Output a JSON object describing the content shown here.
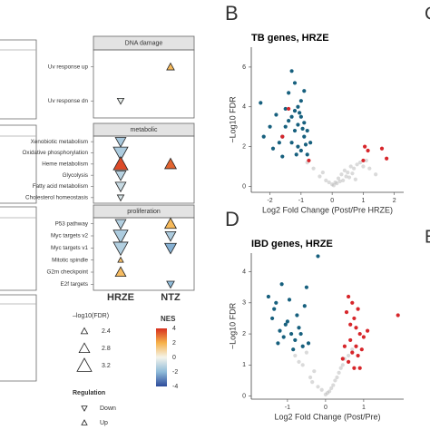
{
  "chart_data": [
    {
      "type": "triangle",
      "x_categories": [
        "HRZE",
        "NTZ"
      ],
      "panels": [
        {
          "title": "DNA damage",
          "rows": [
            {
              "label": "Uv response up",
              "NTZ": {
                "nes": 1.8,
                "fdr": 2.5,
                "regulation": "Up"
              }
            },
            {
              "label": "Uv response dn",
              "HRZE": {
                "nes": -0.3,
                "fdr": 2.4,
                "regulation": "Down"
              }
            }
          ]
        },
        {
          "title": "metabolic",
          "rows": [
            {
              "label": "Xenobiotic metabolism",
              "HRZE": {
                "nes": -1.5,
                "fdr": 2.8,
                "regulation": "Down"
              }
            },
            {
              "label": "Oxidative phosphorylation",
              "HRZE": {
                "nes": -1.4,
                "fdr": 3.2,
                "regulation": "Down"
              }
            },
            {
              "label": "Heme metabolism",
              "HRZE": {
                "nes": 3.6,
                "fdr": 3.2,
                "regulation": "Up"
              },
              "NTZ": {
                "nes": 3.2,
                "fdr": 2.9,
                "regulation": "Up"
              }
            },
            {
              "label": "Glycolysis",
              "HRZE": {
                "nes": -1.2,
                "fdr": 2.8,
                "regulation": "Down"
              }
            },
            {
              "label": "Fatty acid metabolism",
              "HRZE": {
                "nes": -0.9,
                "fdr": 2.8,
                "regulation": "Down"
              }
            },
            {
              "label": "Cholesterol homeostasis",
              "HRZE": {
                "nes": -0.6,
                "fdr": 2.4,
                "regulation": "Down"
              }
            }
          ]
        },
        {
          "title": "proliferation",
          "rows": [
            {
              "label": "P53 pathway",
              "HRZE": {
                "nes": -1.3,
                "fdr": 2.8,
                "regulation": "Down"
              },
              "NTZ": {
                "nes": 1.8,
                "fdr": 2.9,
                "regulation": "Up"
              }
            },
            {
              "label": "Myc targets v2",
              "HRZE": {
                "nes": -1.4,
                "fdr": 3.2,
                "regulation": "Down"
              },
              "NTZ": {
                "nes": -1.4,
                "fdr": 2.8,
                "regulation": "Down"
              }
            },
            {
              "label": "Myc targets v1",
              "HRZE": {
                "nes": -1.3,
                "fdr": 3.2,
                "regulation": "Down"
              },
              "NTZ": {
                "nes": -2.2,
                "fdr": 2.9,
                "regulation": "Down"
              }
            },
            {
              "label": "Mitotic spindle",
              "HRZE": {
                "nes": 1.6,
                "fdr": 2.3,
                "regulation": "Up"
              }
            },
            {
              "label": "G2m checkpoint",
              "HRZE": {
                "nes": 1.7,
                "fdr": 2.8,
                "regulation": "Up"
              }
            },
            {
              "label": "E2f targets",
              "NTZ": {
                "nes": -2.0,
                "fdr": 2.5,
                "regulation": "Down"
              }
            }
          ]
        }
      ],
      "size_legend": {
        "title": "–log10(FDR)",
        "values": [
          2.4,
          2.8,
          3.2
        ]
      },
      "color_legend": {
        "title": "NES",
        "lim": [
          -4,
          4
        ],
        "ticks": [
          4,
          2,
          0,
          -2,
          -4
        ],
        "colors": [
          "#2c4a9a",
          "#8fbbd9",
          "#f4f4ec",
          "#f6b24a",
          "#d7301f"
        ]
      },
      "shape_legend": {
        "title": "Regulation",
        "labels": [
          "Down",
          "Up"
        ]
      }
    },
    {
      "type": "scatter",
      "panel_label": "B",
      "title": "TB genes, HRZE",
      "xlabel": "Log2 Fold Change (Post/Pre HRZE)",
      "ylabel": "−Log10 FDR",
      "xlim": [
        -2.6,
        2.3
      ],
      "ylim": [
        -0.3,
        7
      ],
      "xticks": [
        -2,
        -1,
        0,
        1,
        2
      ],
      "yticks": [
        0,
        2,
        4,
        6
      ],
      "series": [
        {
          "color": "#b5b5b5",
          "x": [
            -0.6,
            -0.4,
            -0.2,
            0,
            0.1,
            0.2,
            0.3,
            0.4,
            0.5,
            0.6,
            0.7,
            0.8,
            0.9,
            1.0,
            1.2,
            1.4,
            -0.8,
            -0.3,
            0.15,
            0.35,
            0.55,
            0.25,
            0.05,
            -0.1,
            0.45,
            0.65,
            1.1,
            0.75
          ],
          "y": [
            0.9,
            0.5,
            0.3,
            0.1,
            0.2,
            0.4,
            0.6,
            0.8,
            0.7,
            1.0,
            0.9,
            1.1,
            1.2,
            1.0,
            0.9,
            0.6,
            1.2,
            0.7,
            0.15,
            0.3,
            0.45,
            0.25,
            0.05,
            0.2,
            0.5,
            0.65,
            1.3,
            0.35
          ]
        },
        {
          "color": "#17607e",
          "x": [
            -1.6,
            -1.5,
            -1.4,
            -1.2,
            -1.1,
            -1.0,
            -0.9,
            -0.8,
            -1.3,
            -1.2,
            -1.0,
            -0.9,
            -1.4,
            -1.1,
            -1.6,
            -2.3,
            -2.0,
            -1.8,
            -1.7,
            -1.3,
            -0.9,
            -0.7,
            -1.2,
            -1.0,
            -1.5,
            -0.8,
            -1.1,
            -1.3,
            -0.95,
            -1.05,
            -2.2,
            -1.9,
            -0.85,
            -1.15
          ],
          "y": [
            2.5,
            3.0,
            4.7,
            5.2,
            4.0,
            3.5,
            3.2,
            2.8,
            2.2,
            3.8,
            4.3,
            2.5,
            3.3,
            2.0,
            1.5,
            4.2,
            3.0,
            3.6,
            2.2,
            5.8,
            4.8,
            2.2,
            2.8,
            1.8,
            3.9,
            1.6,
            3.1,
            3.5,
            2.9,
            3.7,
            2.5,
            1.9,
            2.1,
            1.6
          ]
        },
        {
          "color": "#d7262b",
          "x": [
            -1.4,
            -1.6,
            -0.75,
            1.05,
            1.15,
            1.6,
            1.75,
            1.0
          ],
          "y": [
            3.9,
            2.5,
            1.3,
            2.0,
            1.8,
            1.9,
            1.4,
            1.3
          ]
        }
      ]
    },
    {
      "type": "scatter",
      "panel_label": "D",
      "title": "IBD genes, HRZE",
      "xlabel": "Log2 Fold Change (Post/Pre)",
      "ylabel": "−Log10 FDR",
      "xlim": [
        -1.95,
        2.05
      ],
      "ylim": [
        -0.1,
        4.6
      ],
      "xticks": [
        -1,
        0,
        1
      ],
      "yticks": [
        0,
        1,
        2,
        3,
        4
      ],
      "series": [
        {
          "color": "#b5b5b5",
          "x": [
            -0.8,
            -0.6,
            -0.4,
            -0.2,
            0,
            0.1,
            0.2,
            0.3,
            0.4,
            0.5,
            -0.5,
            -0.3,
            0.6,
            0.25,
            -0.1,
            0.05,
            0.15,
            -0.7,
            0.7,
            0.45,
            -0.35,
            0.35
          ],
          "y": [
            1.3,
            1.0,
            0.6,
            0.3,
            0.05,
            0.15,
            0.35,
            0.6,
            0.9,
            1.2,
            1.4,
            0.8,
            1.3,
            0.5,
            0.2,
            0.1,
            0.25,
            1.1,
            1.5,
            1.0,
            0.45,
            0.75
          ]
        },
        {
          "color": "#17607e",
          "x": [
            -1.5,
            -1.3,
            -1.2,
            -1.0,
            -0.9,
            -0.8,
            -0.7,
            -0.6,
            -1.1,
            -1.4,
            -0.95,
            -0.75,
            -1.25,
            -0.5,
            -0.2,
            -0.55,
            -1.05,
            -0.85,
            -1.35,
            -0.65,
            -0.45,
            -1.15
          ],
          "y": [
            3.2,
            3.0,
            2.1,
            2.4,
            2.0,
            1.8,
            2.2,
            1.6,
            1.9,
            2.5,
            3.1,
            2.6,
            1.7,
            3.5,
            4.5,
            2.9,
            2.3,
            1.5,
            2.8,
            2.0,
            1.7,
            3.6
          ]
        },
        {
          "color": "#d7262b",
          "x": [
            0.6,
            0.7,
            0.8,
            0.9,
            0.5,
            0.65,
            0.75,
            0.85,
            1.0,
            0.55,
            0.95,
            0.6,
            0.7,
            0.8,
            1.1,
            1.9,
            0.45,
            0.9,
            0.65,
            0.75,
            0.85
          ],
          "y": [
            3.2,
            3.0,
            2.2,
            2.0,
            1.6,
            1.8,
            2.5,
            1.3,
            1.9,
            2.7,
            1.5,
            1.1,
            1.4,
            1.6,
            2.1,
            2.6,
            1.2,
            0.9,
            2.3,
            0.9,
            2.8
          ]
        }
      ]
    }
  ],
  "cut_panel_letters": [
    "C",
    "E"
  ]
}
